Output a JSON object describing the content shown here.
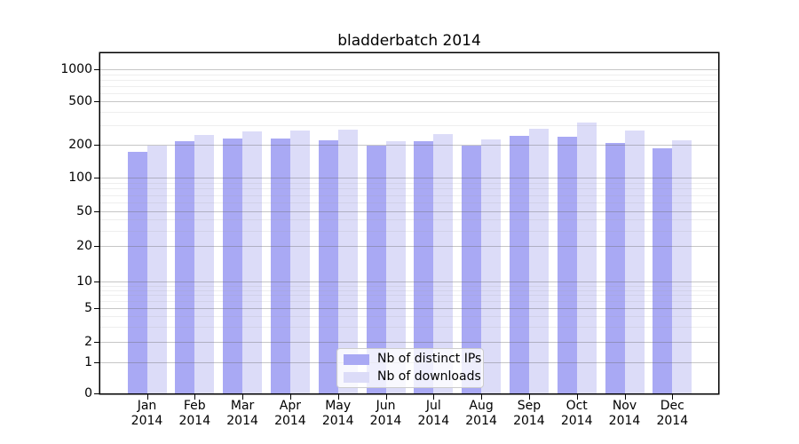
{
  "chart_data": {
    "type": "bar",
    "title": "bladderbatch 2014",
    "categories": [
      {
        "month": "Jan",
        "year": "2014"
      },
      {
        "month": "Feb",
        "year": "2014"
      },
      {
        "month": "Mar",
        "year": "2014"
      },
      {
        "month": "Apr",
        "year": "2014"
      },
      {
        "month": "May",
        "year": "2014"
      },
      {
        "month": "Jun",
        "year": "2014"
      },
      {
        "month": "Jul",
        "year": "2014"
      },
      {
        "month": "Aug",
        "year": "2014"
      },
      {
        "month": "Sep",
        "year": "2014"
      },
      {
        "month": "Oct",
        "year": "2014"
      },
      {
        "month": "Nov",
        "year": "2014"
      },
      {
        "month": "Dec",
        "year": "2014"
      }
    ],
    "series": [
      {
        "name": "Nb of distinct IPs",
        "color": "#a9a9f4",
        "values": [
          172,
          216,
          228,
          230,
          220,
          197,
          214,
          197,
          240,
          235,
          208,
          187
        ]
      },
      {
        "name": "Nb of downloads",
        "color": "#dcdcf8",
        "values": [
          195,
          245,
          266,
          270,
          275,
          216,
          250,
          224,
          278,
          318,
          268,
          221
        ]
      }
    ],
    "xlabel": "",
    "ylabel": "",
    "y_scale": "symlog",
    "y_ticks": [
      0,
      1,
      2,
      5,
      10,
      20,
      50,
      100,
      200,
      500,
      1000
    ],
    "ylim": [
      0,
      1400
    ],
    "grid": true,
    "legend": {
      "position": "lower center",
      "items": [
        "Nb of distinct IPs",
        "Nb of downloads"
      ]
    }
  }
}
